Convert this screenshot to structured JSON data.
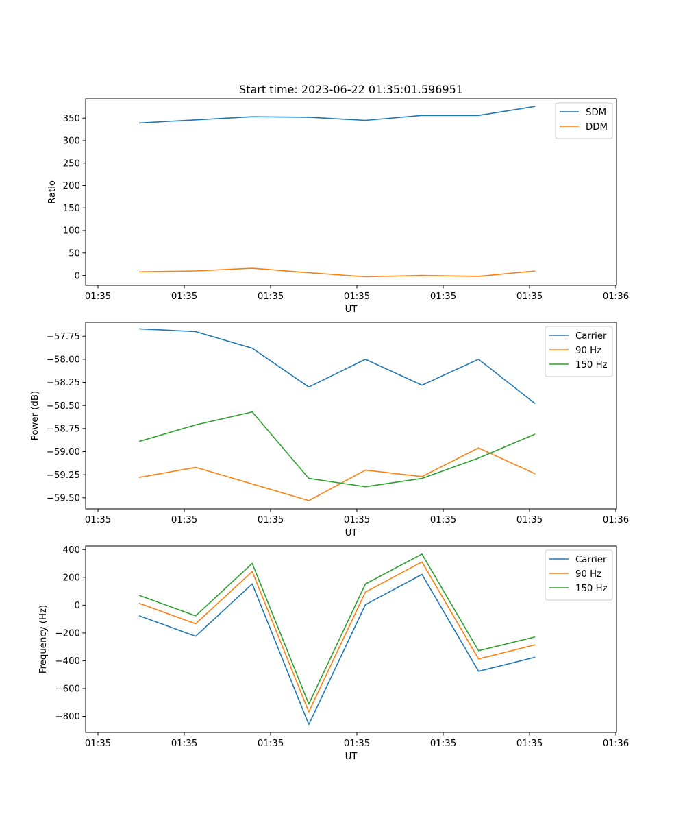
{
  "figure": {
    "title": "Start time: 2023-06-22 01:35:01.596951"
  },
  "colors": {
    "blue": "#1f77b4",
    "orange": "#ff7f0e",
    "green": "#2ca02c"
  },
  "chart_data": [
    {
      "type": "line",
      "title": "Start time: 2023-06-22 01:35:01.596951",
      "xlabel": "UT",
      "ylabel": "Ratio",
      "xtick_labels": [
        "01:35",
        "01:35",
        "01:35",
        "01:35",
        "01:35",
        "01:35",
        "01:36"
      ],
      "yticks": [
        0,
        50,
        100,
        150,
        200,
        250,
        300,
        350
      ],
      "ylim": [
        -22,
        393
      ],
      "legend_position": "top-right",
      "series": [
        {
          "name": "SDM",
          "color": "blue",
          "values": [
            339,
            346,
            353,
            352,
            345,
            356,
            356,
            376
          ]
        },
        {
          "name": "DDM",
          "color": "orange",
          "values": [
            8,
            10,
            16,
            6,
            -3,
            0,
            -2,
            10
          ]
        }
      ]
    },
    {
      "type": "line",
      "xlabel": "UT",
      "ylabel": "Power (dB)",
      "xtick_labels": [
        "01:35",
        "01:35",
        "01:35",
        "01:35",
        "01:35",
        "01:35",
        "01:36"
      ],
      "yticks": [
        -57.75,
        -58.0,
        -58.25,
        -58.5,
        -58.75,
        -59.0,
        -59.25,
        -59.5
      ],
      "ytick_labels": [
        "−57.75",
        "−58.00",
        "−58.25",
        "−58.50",
        "−58.75",
        "−59.00",
        "−59.25",
        "−59.50"
      ],
      "ylim": [
        -59.62,
        -57.6
      ],
      "legend_position": "top-right",
      "series": [
        {
          "name": "Carrier",
          "color": "blue",
          "values": [
            -57.67,
            -57.7,
            -57.88,
            -58.3,
            -58.0,
            -58.28,
            -58.0,
            -58.48
          ]
        },
        {
          "name": "90 Hz",
          "color": "orange",
          "values": [
            -59.28,
            -59.17,
            -59.35,
            -59.53,
            -59.2,
            -59.27,
            -58.96,
            -59.24
          ]
        },
        {
          "name": "150 Hz",
          "color": "green",
          "values": [
            -58.89,
            -58.71,
            -58.57,
            -59.29,
            -59.38,
            -59.29,
            -59.07,
            -58.81
          ]
        }
      ]
    },
    {
      "type": "line",
      "xlabel": "UT",
      "ylabel": "Frequency (Hz)",
      "xtick_labels": [
        "01:35",
        "01:35",
        "01:35",
        "01:35",
        "01:35",
        "01:35",
        "01:36"
      ],
      "yticks": [
        400,
        200,
        0,
        -200,
        -400,
        -600,
        -800
      ],
      "ytick_labels": [
        "400",
        "200",
        "0",
        "−200",
        "−400",
        "−600",
        "−800"
      ],
      "ylim": [
        -916,
        426
      ],
      "legend_position": "top-right",
      "series": [
        {
          "name": "Carrier",
          "color": "blue",
          "values": [
            -76,
            -224,
            153,
            -859,
            3,
            221,
            -476,
            -375
          ]
        },
        {
          "name": "90 Hz",
          "color": "orange",
          "values": [
            14,
            -134,
            242,
            -768,
            94,
            311,
            -387,
            -285
          ]
        },
        {
          "name": "150 Hz",
          "color": "green",
          "values": [
            71,
            -77,
            300,
            -711,
            152,
            368,
            -328,
            -228
          ]
        }
      ]
    }
  ]
}
